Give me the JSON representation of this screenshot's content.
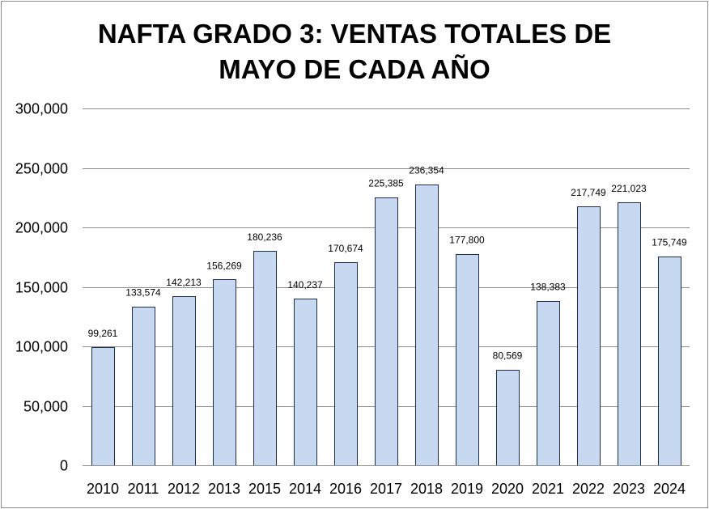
{
  "chart_data": {
    "type": "bar",
    "title_lines": [
      "NAFTA GRADO 3: VENTAS TOTALES DE",
      "MAYO DE CADA AÑO"
    ],
    "title": "NAFTA GRADO 3: VENTAS TOTALES DE MAYO DE CADA AÑO",
    "xlabel": "",
    "ylabel": "",
    "ylim": [
      0,
      300000
    ],
    "yticks": [
      0,
      50000,
      100000,
      150000,
      200000,
      250000,
      300000
    ],
    "ytick_labels": [
      "0",
      "50,000",
      "100,000",
      "150,000",
      "200,000",
      "250,000",
      "300,000"
    ],
    "grid": true,
    "legend": "none",
    "categories": [
      "2010",
      "2011",
      "2012",
      "2013",
      "2015",
      "2014",
      "2016",
      "2017",
      "2018",
      "2019",
      "2020",
      "2021",
      "2022",
      "2023",
      "2024"
    ],
    "values": [
      99261,
      133574,
      142213,
      156269,
      180236,
      140237,
      170674,
      225385,
      236354,
      177800,
      80569,
      138383,
      217749,
      221023,
      175749
    ],
    "value_labels": [
      "99,261",
      "133,574",
      "142,213",
      "156,269",
      "180,236",
      "140,237",
      "170,674",
      "225,385",
      "236,354",
      "177,800",
      "80,569",
      "138,383",
      "217,749",
      "221,023",
      "175,749"
    ],
    "colors": {
      "bar_fill": "#c6d9f1",
      "bar_stroke": "#1f2d4d",
      "grid": "#8c8c8c",
      "axis": "#8c8c8c"
    }
  }
}
